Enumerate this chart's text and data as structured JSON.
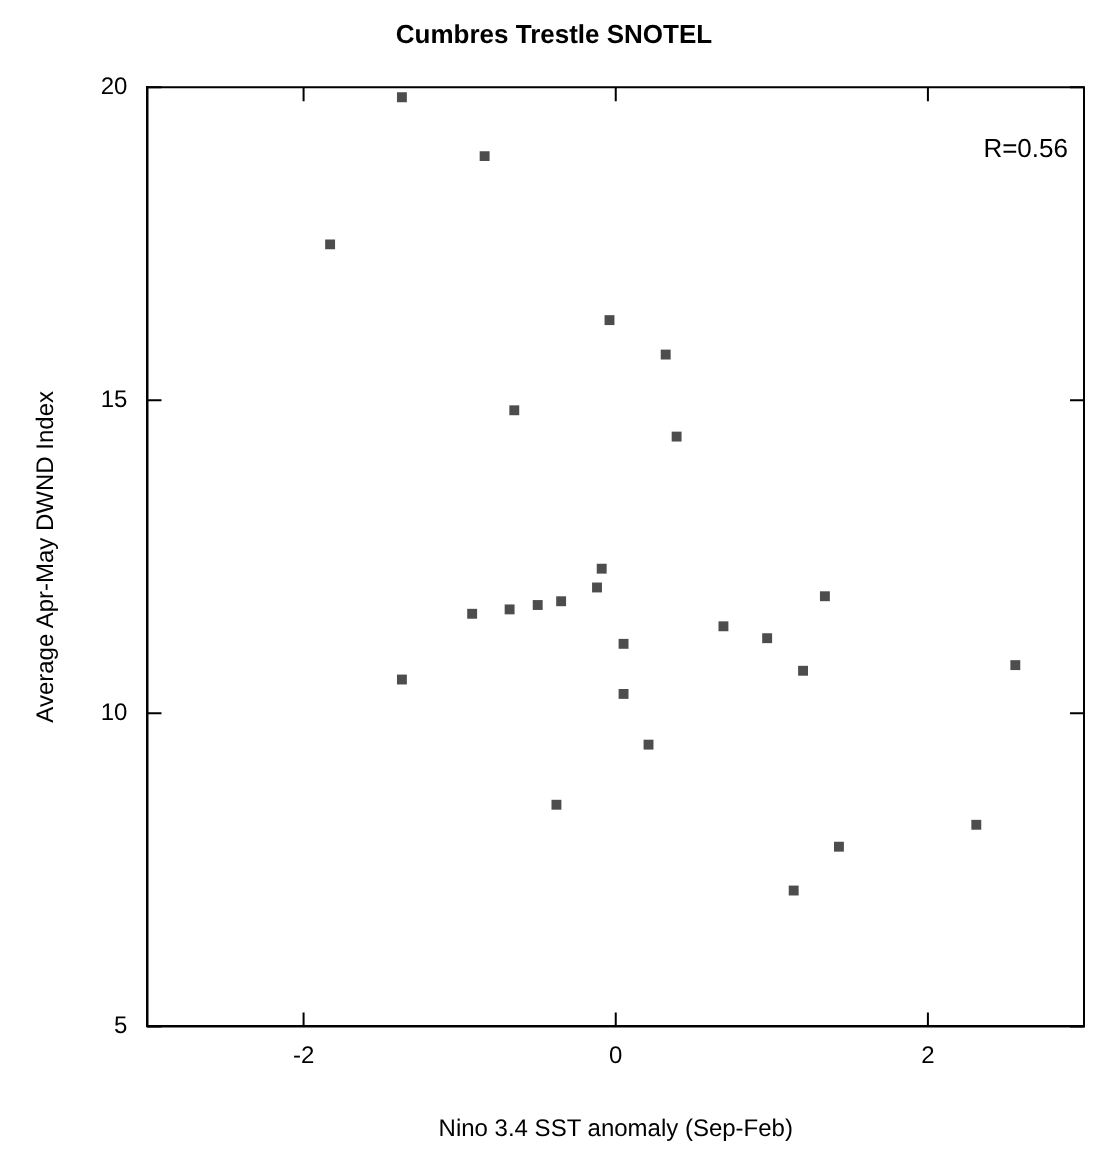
{
  "chart_data": {
    "type": "scatter",
    "title": "Cumbres Trestle SNOTEL",
    "xlabel": "Nino 3.4 SST anomaly (Sep-Feb)",
    "ylabel": "Average Apr-May DWND Index",
    "annotations": [
      "R=0.56"
    ],
    "xlim": [
      -3,
      3
    ],
    "xticks": [
      -2,
      0,
      2
    ],
    "ylim": [
      5,
      20
    ],
    "yticks": [
      5,
      10,
      15,
      20
    ],
    "grid": false,
    "legend": false,
    "marker": "square",
    "series": [
      {
        "color": "#4d4d4d",
        "x": [
          -1.37,
          -0.84,
          -1.83,
          -0.04,
          -0.65,
          0.32,
          0.39,
          -0.09,
          -0.12,
          -0.92,
          -0.68,
          -0.5,
          -0.35,
          0.05,
          0.05,
          -1.37,
          -0.38,
          1.34,
          0.69,
          0.97,
          1.2,
          2.56,
          0.21,
          2.31,
          1.43,
          1.14
        ],
        "values": [
          19.84,
          18.9,
          17.49,
          16.28,
          14.84,
          15.73,
          14.42,
          12.31,
          12.01,
          11.59,
          11.66,
          11.73,
          11.79,
          11.11,
          10.31,
          10.54,
          8.54,
          11.87,
          11.39,
          11.2,
          10.68,
          10.77,
          9.5,
          8.22,
          7.87,
          7.17
        ]
      }
    ]
  }
}
